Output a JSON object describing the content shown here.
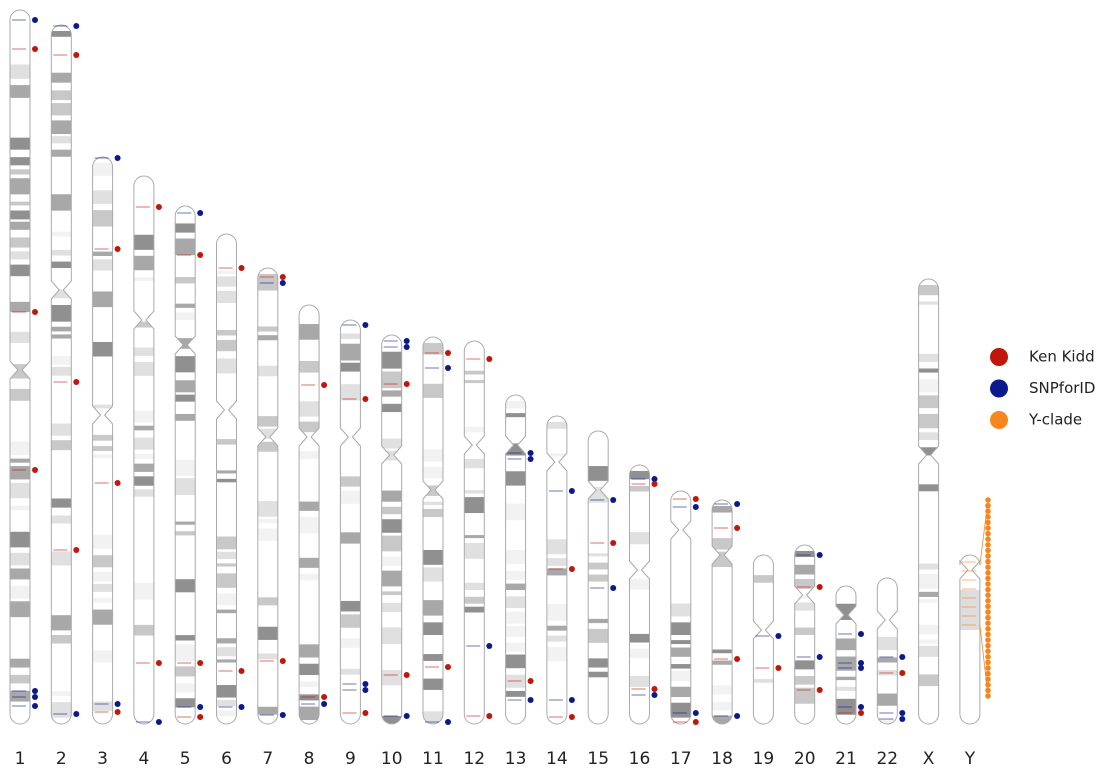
{
  "chromosomes": [
    {
      "label": "1"
    },
    {
      "label": "2"
    },
    {
      "label": "3"
    },
    {
      "label": "4"
    },
    {
      "label": "5"
    },
    {
      "label": "6"
    },
    {
      "label": "7"
    },
    {
      "label": "8"
    },
    {
      "label": "9"
    },
    {
      "label": "10"
    },
    {
      "label": "11"
    },
    {
      "label": "12"
    },
    {
      "label": "13"
    },
    {
      "label": "14"
    },
    {
      "label": "15"
    },
    {
      "label": "16"
    },
    {
      "label": "17"
    },
    {
      "label": "18"
    },
    {
      "label": "19"
    },
    {
      "label": "20"
    },
    {
      "label": "21"
    },
    {
      "label": "22"
    },
    {
      "label": "X"
    },
    {
      "label": "Y"
    }
  ],
  "legend": [
    {
      "label": "Ken Kidd",
      "color": "#c0170a"
    },
    {
      "label": "SNPforID",
      "color": "#0a1a8c"
    },
    {
      "label": "Y-clade",
      "color": "#f7861f"
    }
  ]
}
